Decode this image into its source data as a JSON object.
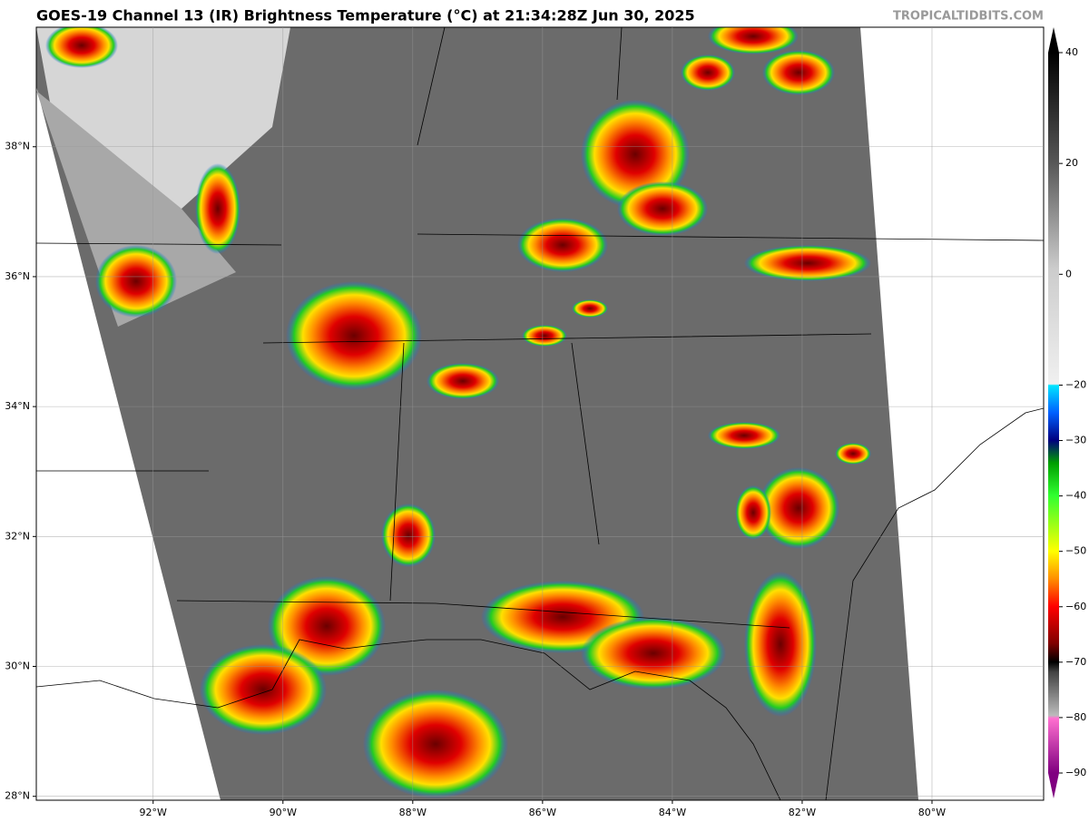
{
  "title": "GOES-19 Channel 13 (IR) Brightness Temperature (°C) at 21:34:28Z Jun 30, 2025",
  "credit": "TROPICALTIDBITS.COM",
  "map": {
    "xlim": [
      -93.8,
      -78.28
    ],
    "ylim": [
      27.94,
      39.84
    ],
    "xticks": [
      {
        "value": -92,
        "label": "92°W"
      },
      {
        "value": -90,
        "label": "90°W"
      },
      {
        "value": -88,
        "label": "88°W"
      },
      {
        "value": -86,
        "label": "86°W"
      },
      {
        "value": -84,
        "label": "84°W"
      },
      {
        "value": -82,
        "label": "82°W"
      },
      {
        "value": -80,
        "label": "80°W"
      }
    ],
    "yticks": [
      {
        "value": 28,
        "label": "28°N"
      },
      {
        "value": 30,
        "label": "30°N"
      },
      {
        "value": 32,
        "label": "32°N"
      },
      {
        "value": 34,
        "label": "34°N"
      },
      {
        "value": 36,
        "label": "36°N"
      },
      {
        "value": 38,
        "label": "38°N"
      }
    ],
    "grid": true
  },
  "colorbar": {
    "lim": [
      -90,
      40
    ],
    "ticks": [
      40,
      20,
      0,
      {
        "value": -20,
        "label": "−20"
      },
      {
        "value": -30,
        "label": "−30"
      },
      {
        "value": -40,
        "label": "−40"
      },
      {
        "value": -50,
        "label": "−50"
      },
      {
        "value": -60,
        "label": "−60"
      },
      {
        "value": -70,
        "label": "−70"
      },
      {
        "value": -80,
        "label": "−80"
      },
      {
        "value": -90,
        "label": "−90"
      }
    ]
  }
}
